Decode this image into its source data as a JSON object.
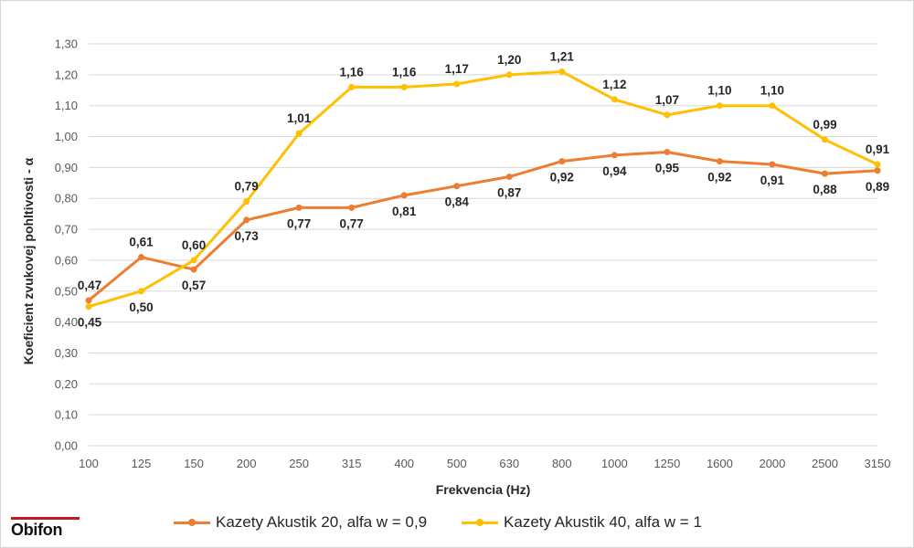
{
  "brand": {
    "logo_text": "Obifon",
    "accent_color": "#c0191e"
  },
  "chart_data": {
    "type": "line",
    "title": "",
    "xlabel": "Frekvencia (Hz)",
    "ylabel": "Koeficient zvukovej pohltivosti - α",
    "categories": [
      "100",
      "125",
      "150",
      "200",
      "250",
      "315",
      "400",
      "500",
      "630",
      "800",
      "1000",
      "1250",
      "1600",
      "2000",
      "2500",
      "3150"
    ],
    "ylim": [
      0,
      1.3
    ],
    "yticks": [
      "0,00",
      "0,10",
      "0,20",
      "0,30",
      "0,40",
      "0,50",
      "0,60",
      "0,70",
      "0,80",
      "0,90",
      "1,00",
      "1,10",
      "1,20",
      "1,30"
    ],
    "grid": true,
    "legend_position": "bottom",
    "series": [
      {
        "name": "Kazety Akustik 20, alfa w = 0,9",
        "color": "#ed7d31",
        "values": [
          0.47,
          0.61,
          0.57,
          0.73,
          0.77,
          0.77,
          0.81,
          0.84,
          0.87,
          0.92,
          0.94,
          0.95,
          0.92,
          0.91,
          0.88,
          0.89
        ],
        "labels": [
          "0,47",
          "0,61",
          "0,57",
          "0,73",
          "0,77",
          "0,77",
          "0,81",
          "0,84",
          "0,87",
          "0,92",
          "0,94",
          "0,95",
          "0,92",
          "0,91",
          "0,88",
          "0,89"
        ]
      },
      {
        "name": "Kazety Akustik 40, alfa w = 1",
        "color": "#ffc000",
        "values": [
          0.45,
          0.5,
          0.6,
          0.79,
          1.01,
          1.16,
          1.16,
          1.17,
          1.2,
          1.21,
          1.12,
          1.07,
          1.1,
          1.1,
          0.99,
          0.91
        ],
        "labels": [
          "0,45",
          "0,50",
          "0,60",
          "0,79",
          "1,01",
          "1,16",
          "1,16",
          "1,17",
          "1,20",
          "1,21",
          "1,12",
          "1,07",
          "1,10",
          "1,10",
          "0,99",
          "0,91"
        ]
      }
    ]
  }
}
